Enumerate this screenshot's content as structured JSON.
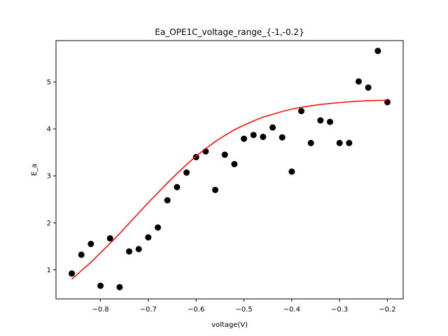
{
  "chart_data": {
    "type": "scatter",
    "title": "Ea_OPE1C_voltage_range_{-1,-0.2}",
    "xlabel": "voltage(V)",
    "ylabel": "E_a",
    "xlim": [
      -0.893,
      -0.167
    ],
    "ylim": [
      0.38,
      5.88
    ],
    "xticks": [
      -0.8,
      -0.7,
      -0.6,
      -0.5,
      -0.4,
      -0.3,
      -0.2
    ],
    "xtick_labels": [
      "−0.8",
      "−0.7",
      "−0.6",
      "−0.5",
      "−0.4",
      "−0.3",
      "−0.2"
    ],
    "yticks": [
      1,
      2,
      3,
      4,
      5
    ],
    "ytick_labels": [
      "1",
      "2",
      "3",
      "4",
      "5"
    ],
    "grid": false,
    "series": [
      {
        "kind": "points",
        "color": "#000000",
        "x": [
          -0.86,
          -0.84,
          -0.82,
          -0.8,
          -0.78,
          -0.76,
          -0.74,
          -0.72,
          -0.7,
          -0.68,
          -0.66,
          -0.64,
          -0.62,
          -0.6,
          -0.58,
          -0.56,
          -0.54,
          -0.52,
          -0.5,
          -0.48,
          -0.46,
          -0.44,
          -0.42,
          -0.4,
          -0.38,
          -0.36,
          -0.34,
          -0.32,
          -0.3,
          -0.28,
          -0.26,
          -0.24,
          -0.22,
          -0.2
        ],
        "y": [
          0.92,
          1.32,
          1.55,
          0.66,
          1.67,
          0.63,
          1.39,
          1.44,
          1.69,
          1.9,
          2.48,
          2.76,
          3.07,
          3.4,
          3.52,
          2.7,
          3.45,
          3.25,
          3.79,
          3.87,
          3.83,
          4.03,
          3.82,
          3.09,
          4.38,
          3.7,
          4.18,
          4.15,
          3.7,
          3.7,
          5.01,
          4.88,
          5.66,
          4.57
        ]
      },
      {
        "kind": "line",
        "color": "#ff0000",
        "x": [
          -0.86,
          -0.84,
          -0.82,
          -0.8,
          -0.78,
          -0.76,
          -0.74,
          -0.72,
          -0.7,
          -0.68,
          -0.66,
          -0.64,
          -0.62,
          -0.6,
          -0.58,
          -0.56,
          -0.54,
          -0.52,
          -0.5,
          -0.48,
          -0.46,
          -0.44,
          -0.42,
          -0.4,
          -0.38,
          -0.36,
          -0.34,
          -0.32,
          -0.3,
          -0.28,
          -0.26,
          -0.24,
          -0.22,
          -0.2
        ],
        "y": [
          0.8,
          0.98,
          1.16,
          1.36,
          1.56,
          1.77,
          1.99,
          2.21,
          2.43,
          2.64,
          2.85,
          3.05,
          3.24,
          3.42,
          3.58,
          3.73,
          3.86,
          3.98,
          4.08,
          4.17,
          4.25,
          4.31,
          4.37,
          4.42,
          4.46,
          4.49,
          4.52,
          4.54,
          4.56,
          4.575,
          4.59,
          4.6,
          4.605,
          4.61
        ]
      }
    ]
  }
}
